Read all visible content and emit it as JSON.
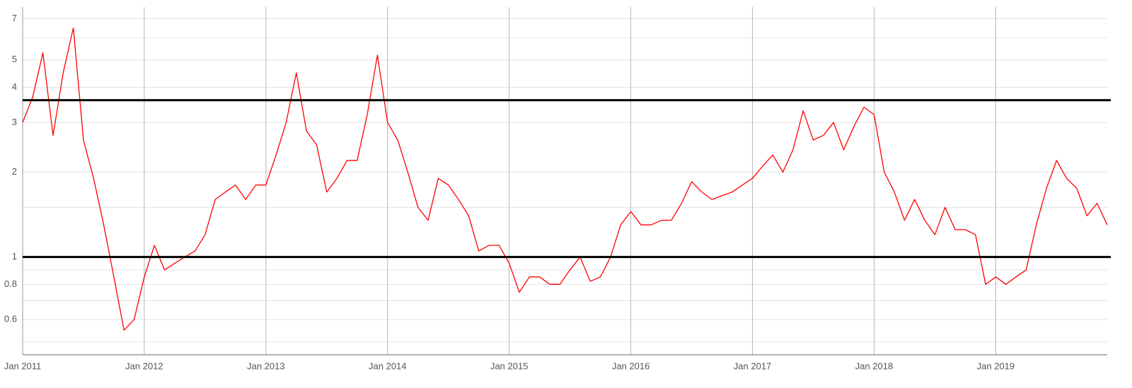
{
  "chart_data": {
    "type": "line",
    "log_scale_y": true,
    "grid": true,
    "xlim": [
      "2011-01",
      "2019-12"
    ],
    "ylim": [
      0.45,
      7.7
    ],
    "xticks": [
      {
        "value": "2011-01",
        "label": "Jan 2011"
      },
      {
        "value": "2012-01",
        "label": "Jan 2012"
      },
      {
        "value": "2013-01",
        "label": "Jan 2013"
      },
      {
        "value": "2014-01",
        "label": "Jan 2014"
      },
      {
        "value": "2015-01",
        "label": "Jan 2015"
      },
      {
        "value": "2016-01",
        "label": "Jan 2016"
      },
      {
        "value": "2017-01",
        "label": "Jan 2017"
      },
      {
        "value": "2018-01",
        "label": "Jan 2018"
      },
      {
        "value": "2019-01",
        "label": "Jan 2019"
      }
    ],
    "yticks": [
      0.6,
      0.8,
      1,
      2,
      3,
      4,
      5,
      7
    ],
    "y_minor_gridlines": [
      0.5,
      0.7,
      0.9,
      1.5,
      6
    ],
    "reference_lines": {
      "values": [
        1,
        3.6
      ],
      "color": "#000000"
    },
    "x": [
      "2011-01",
      "2011-02",
      "2011-03",
      "2011-04",
      "2011-05",
      "2011-06",
      "2011-07",
      "2011-08",
      "2011-09",
      "2011-10",
      "2011-11",
      "2011-12",
      "2012-01",
      "2012-02",
      "2012-03",
      "2012-04",
      "2012-05",
      "2012-06",
      "2012-07",
      "2012-08",
      "2012-09",
      "2012-10",
      "2012-11",
      "2012-12",
      "2013-01",
      "2013-02",
      "2013-03",
      "2013-04",
      "2013-05",
      "2013-06",
      "2013-07",
      "2013-08",
      "2013-09",
      "2013-10",
      "2013-11",
      "2013-12",
      "2014-01",
      "2014-02",
      "2014-03",
      "2014-04",
      "2014-05",
      "2014-06",
      "2014-07",
      "2014-08",
      "2014-09",
      "2014-10",
      "2014-11",
      "2014-12",
      "2015-01",
      "2015-02",
      "2015-03",
      "2015-04",
      "2015-05",
      "2015-06",
      "2015-07",
      "2015-08",
      "2015-09",
      "2015-10",
      "2015-11",
      "2015-12",
      "2016-01",
      "2016-02",
      "2016-03",
      "2016-04",
      "2016-05",
      "2016-06",
      "2016-07",
      "2016-08",
      "2016-09",
      "2016-10",
      "2016-11",
      "2016-12",
      "2017-01",
      "2017-02",
      "2017-03",
      "2017-04",
      "2017-05",
      "2017-06",
      "2017-07",
      "2017-08",
      "2017-09",
      "2017-10",
      "2017-11",
      "2017-12",
      "2018-01",
      "2018-02",
      "2018-03",
      "2018-04",
      "2018-05",
      "2018-06",
      "2018-07",
      "2018-08",
      "2018-09",
      "2018-10",
      "2018-11",
      "2018-12",
      "2019-01",
      "2019-02",
      "2019-03",
      "2019-04",
      "2019-05",
      "2019-06",
      "2019-07",
      "2019-08",
      "2019-09",
      "2019-10",
      "2019-11",
      "2019-12"
    ],
    "series": [
      {
        "color": "#ff0000",
        "values": [
          3.0,
          3.7,
          5.3,
          2.7,
          4.5,
          6.5,
          2.6,
          1.9,
          1.3,
          0.85,
          0.55,
          0.6,
          0.85,
          1.1,
          0.9,
          0.95,
          1.0,
          1.05,
          1.2,
          1.6,
          1.7,
          1.8,
          1.6,
          1.8,
          1.8,
          2.3,
          3.0,
          4.5,
          2.8,
          2.5,
          1.7,
          1.9,
          2.2,
          2.2,
          3.2,
          5.2,
          3.0,
          2.6,
          2.0,
          1.5,
          1.35,
          1.9,
          1.8,
          1.6,
          1.4,
          1.05,
          1.1,
          1.1,
          0.95,
          0.75,
          0.85,
          0.85,
          0.8,
          0.8,
          0.9,
          1.0,
          0.82,
          0.85,
          1.0,
          1.3,
          1.45,
          1.3,
          1.3,
          1.35,
          1.35,
          1.55,
          1.85,
          1.7,
          1.6,
          1.65,
          1.7,
          1.8,
          1.9,
          2.1,
          2.3,
          2.0,
          2.4,
          3.3,
          2.6,
          2.7,
          3.0,
          2.4,
          2.9,
          3.4,
          3.2,
          2.0,
          1.7,
          1.35,
          1.6,
          1.35,
          1.2,
          1.5,
          1.25,
          1.25,
          1.2,
          0.8,
          0.85,
          0.8,
          0.85,
          0.9,
          1.3,
          1.75,
          2.2,
          1.9,
          1.75,
          1.4,
          1.55,
          1.3
        ]
      }
    ]
  }
}
